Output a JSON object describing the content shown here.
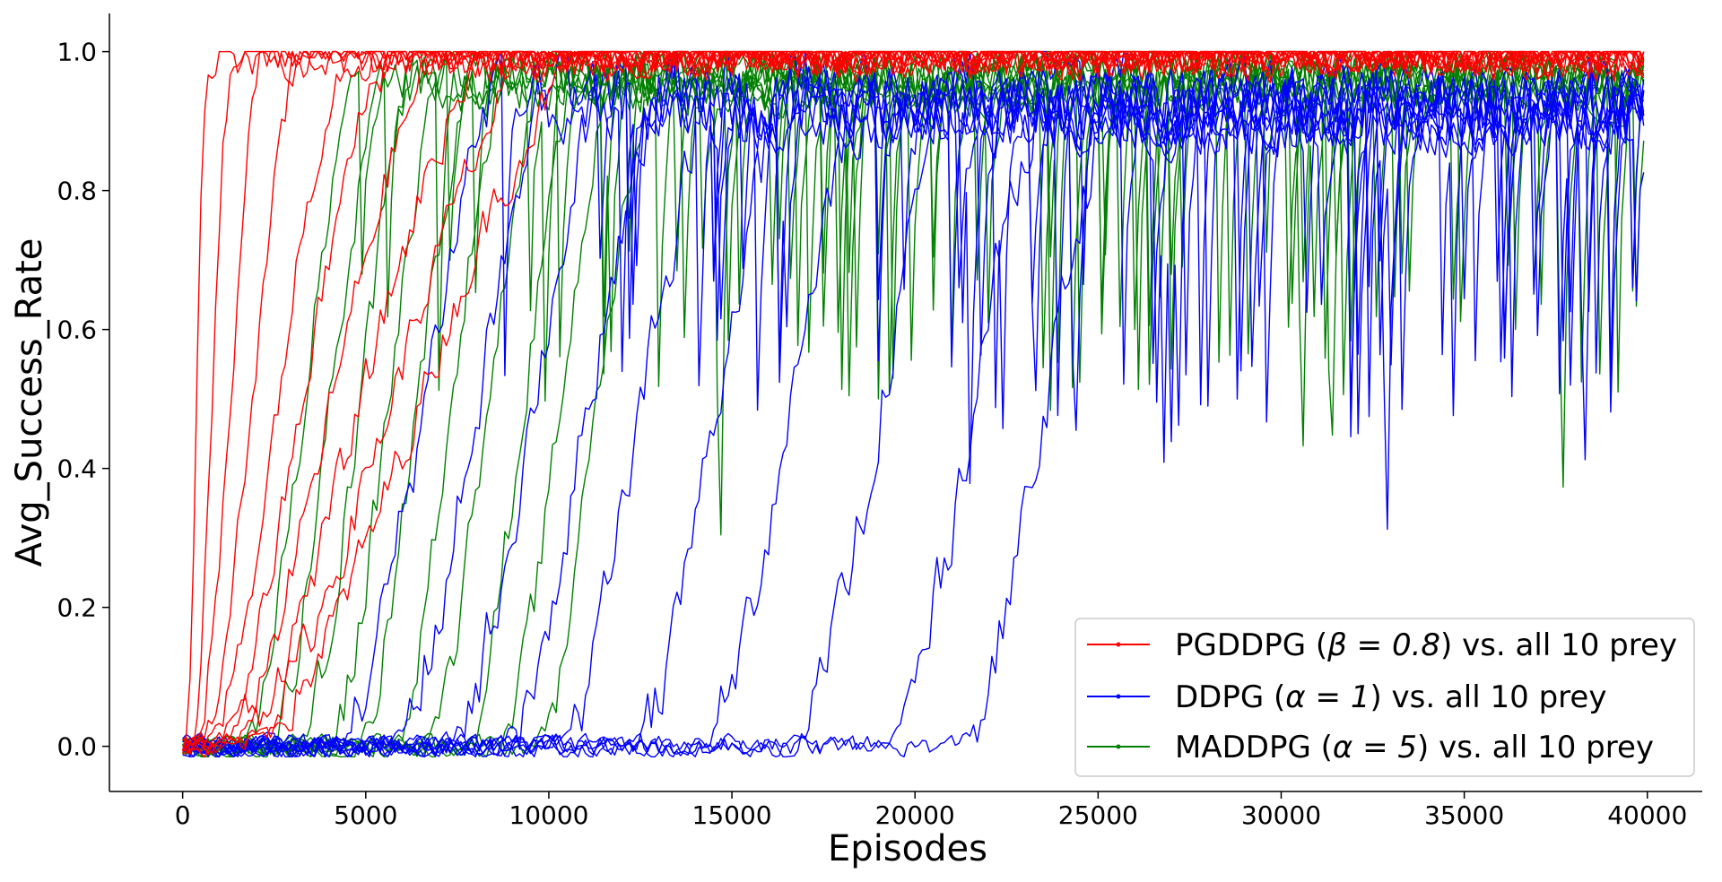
{
  "chart_data": {
    "type": "line",
    "xlabel": "Episodes",
    "ylabel": "Avg_Success_Rate",
    "xlim": [
      -2000,
      41500
    ],
    "ylim": [
      -0.065,
      1.055
    ],
    "x_ticks": [
      0,
      5000,
      10000,
      15000,
      20000,
      25000,
      30000,
      35000,
      40000
    ],
    "x_tick_labels": [
      "0",
      "5000",
      "10000",
      "15000",
      "20000",
      "25000",
      "30000",
      "35000",
      "40000"
    ],
    "y_ticks": [
      0.0,
      0.2,
      0.4,
      0.6,
      0.8,
      1.0
    ],
    "y_tick_labels": [
      "0.0",
      "0.2",
      "0.4",
      "0.6",
      "0.8",
      "1.0"
    ],
    "grid": false,
    "legend_position": "bottom-right",
    "x_step": 100,
    "x_end": 39900,
    "series": [
      {
        "name": "PGDDPG (β = 0.8) vs. all 10 prey",
        "label_prefix": "PGDDPG (",
        "label_param": "β = 0.8",
        "label_suffix": ") vs. all 10 prey",
        "color": "#ff0000",
        "runs_rise_episode_approx": [
          300,
          700,
          1200,
          1800,
          2500,
          3200,
          4000,
          4800,
          5600,
          6400
        ],
        "early_peak_approx": 0.92,
        "final_value_approx": 1.0
      },
      {
        "name": "DDPG (α = 1) vs. all 10 prey",
        "label_prefix": "DDPG (",
        "label_param": "α = 1",
        "label_suffix": ") vs. all 10 prey",
        "color": "#0000ff",
        "runs_rise_episode_approx": [
          4000,
          5500,
          7000,
          8500,
          10000,
          12000,
          14000,
          16500,
          19000,
          21000
        ],
        "min_value_approx": -0.01,
        "late_low_approx": 0.31,
        "final_value_approx": 0.93
      },
      {
        "name": "MADDPG (α = 5) vs. all 10 prey",
        "label_prefix": "MADDPG (",
        "label_param": "α = 5",
        "label_suffix": ") vs. all 10 prey",
        "color": "#008000",
        "runs_rise_episode_approx": [
          1500,
          2200,
          3000,
          3800,
          4600,
          5500,
          6500,
          7500,
          8500,
          9500
        ],
        "late_low_approx": 0.35,
        "final_value_approx": 0.96
      }
    ]
  }
}
